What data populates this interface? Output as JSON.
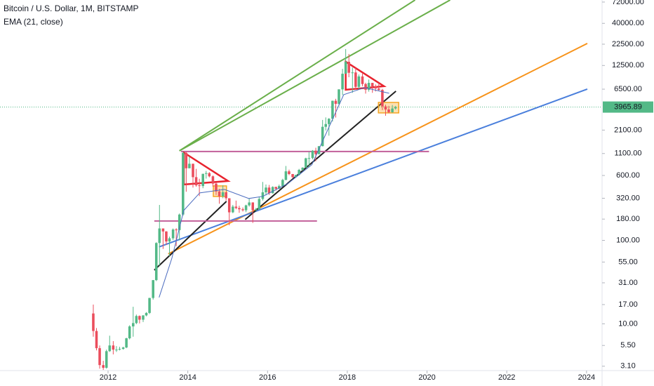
{
  "chart_data": {
    "type": "candlestick",
    "title": "Bitcoin / U.S. Dollar, 1M, BITSTAMP",
    "up_color": "#53b987",
    "down_color": "#eb4d5c",
    "log_scale": true,
    "grid": false,
    "xlim": [
      2009.29,
      2024.39
    ],
    "xticks": [
      2012,
      2014,
      2016,
      2018,
      2020,
      2022,
      2024
    ],
    "ylim": [
      2.75,
      76200
    ],
    "yticks": [
      {
        "value": 72000,
        "label": "72000.00"
      },
      {
        "value": 40000,
        "label": "40000.00"
      },
      {
        "value": 22500,
        "label": "22500.00"
      },
      {
        "value": 12500,
        "label": "12500.00"
      },
      {
        "value": 6500,
        "label": "6500.00"
      },
      {
        "value": 2100,
        "label": "2100.00"
      },
      {
        "value": 1100,
        "label": "1100.00"
      },
      {
        "value": 600,
        "label": "600.00"
      },
      {
        "value": 320,
        "label": "320.00"
      },
      {
        "value": 180,
        "label": "180.00"
      },
      {
        "value": 100,
        "label": "100.00"
      },
      {
        "value": 55,
        "label": "55.00"
      },
      {
        "value": 31,
        "label": "31.00"
      },
      {
        "value": 17,
        "label": "17.00"
      },
      {
        "value": 10,
        "label": "10.00"
      },
      {
        "value": 5.5,
        "label": "5.50"
      },
      {
        "value": 3.1,
        "label": "3.10"
      }
    ],
    "last_price": 3965.89,
    "x": [
      2011.63,
      2011.71,
      2011.79,
      2011.88,
      2011.96,
      2012.04,
      2012.13,
      2012.21,
      2012.29,
      2012.38,
      2012.46,
      2012.54,
      2012.63,
      2012.71,
      2012.79,
      2012.88,
      2012.96,
      2013.04,
      2013.13,
      2013.21,
      2013.29,
      2013.38,
      2013.46,
      2013.54,
      2013.63,
      2013.71,
      2013.79,
      2013.88,
      2013.96,
      2014.04,
      2014.13,
      2014.21,
      2014.29,
      2014.38,
      2014.46,
      2014.54,
      2014.63,
      2014.71,
      2014.79,
      2014.88,
      2014.96,
      2015.04,
      2015.13,
      2015.21,
      2015.29,
      2015.38,
      2015.46,
      2015.54,
      2015.63,
      2015.71,
      2015.79,
      2015.88,
      2015.96,
      2016.04,
      2016.13,
      2016.21,
      2016.29,
      2016.38,
      2016.46,
      2016.54,
      2016.63,
      2016.71,
      2016.79,
      2016.88,
      2016.96,
      2017.04,
      2017.13,
      2017.21,
      2017.29,
      2017.38,
      2017.46,
      2017.54,
      2017.63,
      2017.71,
      2017.79,
      2017.88,
      2017.96,
      2018.04,
      2018.13,
      2018.21,
      2018.29,
      2018.38,
      2018.46,
      2018.54,
      2018.63,
      2018.71,
      2018.79,
      2018.88,
      2018.96,
      2019.04,
      2019.13,
      2019.21
    ],
    "open": [
      13.3,
      8.2,
      5.1,
      3.2,
      2.97,
      4.7,
      5.5,
      4.9,
      4.9,
      5.0,
      5.2,
      6.7,
      9.3,
      10.2,
      12.4,
      11.2,
      12.6,
      13.5,
      20.4,
      33.4,
      93,
      139,
      128,
      97,
      106,
      135,
      133,
      204,
      1120,
      732,
      829,
      573,
      457,
      448,
      628,
      640,
      586,
      479,
      386,
      338,
      378,
      320,
      217,
      254,
      244,
      236,
      230,
      263,
      285,
      230,
      236,
      314,
      377,
      430,
      368,
      437,
      416,
      448,
      531,
      673,
      624,
      573,
      609,
      700,
      745,
      964,
      970,
      1190,
      1080,
      1348,
      2300,
      2480,
      2875,
      4718,
      4338,
      6468,
      9947,
      13850,
      10221,
      10315,
      6926,
      9240,
      7494,
      6390,
      7730,
      7033,
      6625,
      6371,
      4039,
      3709,
      3437,
      3816
    ],
    "high": [
      17,
      8.9,
      5.5,
      3.6,
      4.9,
      7.2,
      6.2,
      5.4,
      5.3,
      5.3,
      6.8,
      9.6,
      16,
      12.9,
      12.6,
      12.7,
      13.8,
      20.5,
      33.5,
      95,
      266,
      139,
      129,
      111,
      139,
      140,
      210,
      1163,
      1150,
      1007,
      831,
      720,
      548,
      630,
      680,
      659,
      600,
      491,
      414,
      458,
      380,
      320,
      266,
      300,
      260,
      248,
      268,
      318,
      286,
      246,
      334,
      502,
      468,
      462,
      445,
      441,
      467,
      548,
      780,
      705,
      626,
      612,
      720,
      752,
      980,
      1150,
      1210,
      1290,
      1350,
      2780,
      2980,
      2920,
      4740,
      4980,
      6470,
      11400,
      19666,
      17180,
      11790,
      11700,
      9760,
      10000,
      7770,
      8500,
      7750,
      7410,
      7680,
      6560,
      4240,
      4100,
      4200,
      4100
    ],
    "low": [
      7,
      4.8,
      2.9,
      2.8,
      2.9,
      4.6,
      4.3,
      4.6,
      4.8,
      4.9,
      5.1,
      6.5,
      7,
      9.9,
      10.1,
      10.5,
      12.3,
      13.1,
      19.5,
      32.5,
      50,
      79,
      88,
      65,
      101,
      85,
      100,
      197,
      383,
      732,
      430,
      440,
      340,
      422,
      550,
      570,
      440,
      350,
      275,
      320,
      300,
      152,
      212,
      236,
      214,
      222,
      218,
      254,
      162,
      226,
      235,
      300,
      347,
      351,
      364,
      395,
      414,
      440,
      525,
      605,
      560,
      569,
      600,
      683,
      742,
      750,
      936,
      890,
      1075,
      1340,
      2080,
      1800,
      2660,
      2970,
      4110,
      5500,
      10700,
      9035,
      5873,
      6450,
      6430,
      7050,
      5750,
      6070,
      5880,
      6100,
      6200,
      3650,
      3120,
      3350,
      3390,
      3700
    ],
    "close": [
      8.2,
      5.1,
      3.2,
      2.97,
      4.7,
      5.5,
      4.9,
      4.9,
      5.0,
      5.2,
      6.7,
      9.3,
      10.2,
      12.4,
      11.2,
      12.6,
      13.5,
      20.4,
      33.4,
      93,
      139,
      128,
      97,
      106,
      135,
      133,
      204,
      1120,
      732,
      829,
      573,
      457,
      448,
      628,
      640,
      586,
      479,
      386,
      338,
      378,
      320,
      217,
      254,
      244,
      236,
      230,
      263,
      285,
      230,
      236,
      314,
      377,
      430,
      368,
      437,
      416,
      448,
      531,
      673,
      624,
      573,
      609,
      700,
      745,
      964,
      970,
      1190,
      1080,
      1348,
      2300,
      2480,
      2875,
      4718,
      4338,
      6468,
      9947,
      13850,
      10221,
      10315,
      6926,
      9240,
      7494,
      6390,
      7730,
      7033,
      6625,
      6371,
      4039,
      3709,
      3437,
      3816,
      3966
    ],
    "ema": {
      "name": "EMA (21, close)",
      "color": "#4a6bbf",
      "x": [
        2013.28,
        2013.6,
        2013.9,
        2014.3,
        2014.92,
        2015.53,
        2015.88,
        2016.5,
        2017.11,
        2017.55,
        2017.91,
        2018.43,
        2019.05
      ],
      "values": [
        20.7,
        61,
        229,
        371,
        408,
        318,
        337,
        477,
        805,
        2334,
        5585,
        6780,
        5810
      ]
    },
    "drawings": [
      {
        "shape": "line",
        "color": "#6aaf4a",
        "x": [
          2013.79,
          2019.7
        ],
        "y": [
          1186,
          76200
        ]
      },
      {
        "shape": "line",
        "color": "#6aaf4a",
        "x": [
          2013.79,
          2020.58
        ],
        "y": [
          1186,
          76200
        ]
      },
      {
        "shape": "line",
        "color": "#f7931a",
        "x": [
          2013.51,
          2024.02
        ],
        "y": [
          68.9,
          22960
        ]
      },
      {
        "shape": "line",
        "color": "#4a7fdc",
        "x": [
          2013.28,
          2024.02
        ],
        "y": [
          83.5,
          6518
        ]
      },
      {
        "shape": "line",
        "color": "#222222",
        "x": [
          2013.16,
          2014.97
        ],
        "y": [
          44,
          294
        ]
      },
      {
        "shape": "line",
        "color": "#222222",
        "x": [
          2015.44,
          2019.22
        ],
        "y": [
          178,
          6150
        ]
      },
      {
        "shape": "line",
        "color": "#c2609a",
        "x": [
          2013.83,
          2020.05
        ],
        "y": [
          1164,
          1164
        ]
      },
      {
        "shape": "line",
        "color": "#c2609a",
        "x": [
          2013.16,
          2017.24
        ],
        "y": [
          171,
          171
        ]
      },
      {
        "shape": "triangle",
        "color": "#e8232e",
        "x": [
          2013.9,
          2013.9,
          2015.01
        ],
        "y": [
          1130,
          468,
          515
        ]
      },
      {
        "shape": "triangle",
        "color": "#e8232e",
        "x": [
          2017.96,
          2017.96,
          2018.92
        ],
        "y": [
          13870,
          6400,
          7050
        ]
      },
      {
        "shape": "box",
        "color": "#f5a623",
        "x": [
          2014.64,
          2014.97
        ],
        "y": [
          450,
          336
        ]
      },
      {
        "shape": "box",
        "color": "#f5a623",
        "x": [
          2018.78,
          2019.29
        ],
        "y": [
          4510,
          3375
        ]
      }
    ]
  }
}
